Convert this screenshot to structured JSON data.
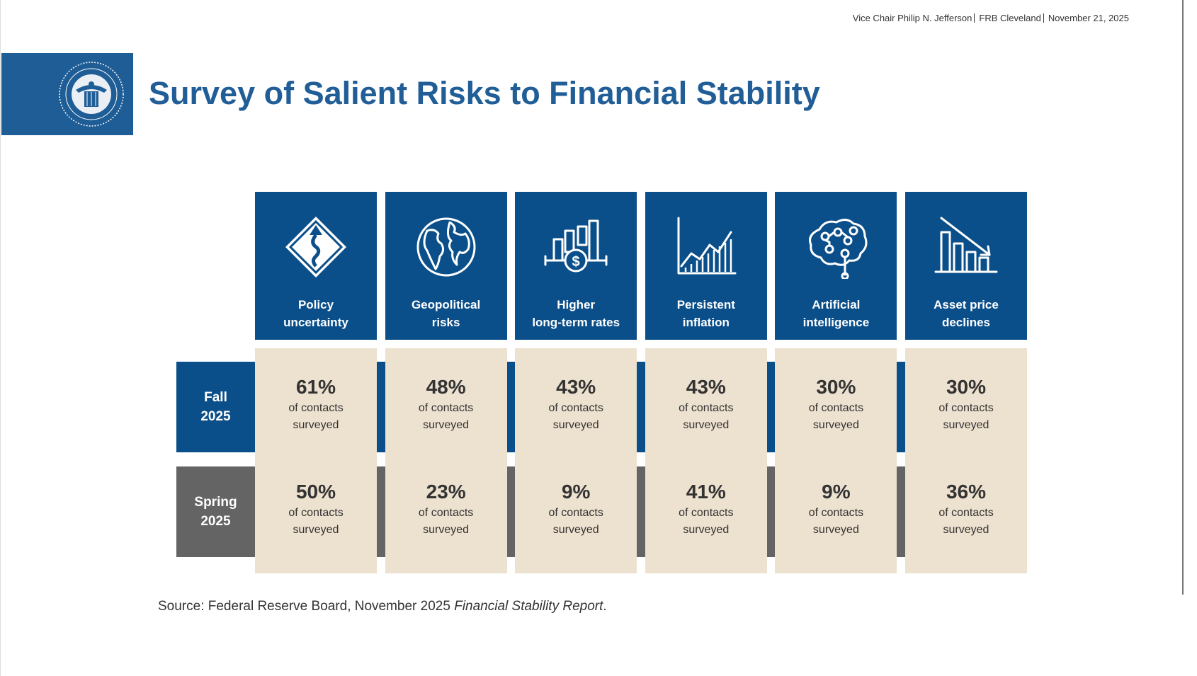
{
  "header": {
    "items": [
      "Vice Chair Philip N. Jefferson",
      "FRB Cleveland",
      "November 21, 2025"
    ]
  },
  "title": "Survey of Salient Risks to Financial Stability",
  "columns": [
    {
      "label": [
        "Policy",
        "uncertainty"
      ]
    },
    {
      "label": [
        "Geopolitical",
        "risks"
      ]
    },
    {
      "label": [
        "Higher",
        "long-term rates"
      ]
    },
    {
      "label": [
        "Persistent",
        "inflation"
      ]
    },
    {
      "label": [
        "Artificial",
        "intelligence"
      ]
    },
    {
      "label": [
        "Asset price",
        "declines"
      ]
    }
  ],
  "rows": [
    {
      "label": [
        "Fall",
        "2025"
      ],
      "values": [
        "61%",
        "48%",
        "43%",
        "43%",
        "30%",
        "30%"
      ],
      "note": [
        "of contacts",
        "surveyed"
      ]
    },
    {
      "label": [
        "Spring",
        "2025"
      ],
      "values": [
        "50%",
        "23%",
        "9%",
        "41%",
        "9%",
        "36%"
      ],
      "note": [
        "of contacts",
        "surveyed"
      ]
    }
  ],
  "source": {
    "prefix": "Source: Federal Reserve Board, November 2025 ",
    "italic": "Financial Stability Report",
    "suffix": "."
  }
}
